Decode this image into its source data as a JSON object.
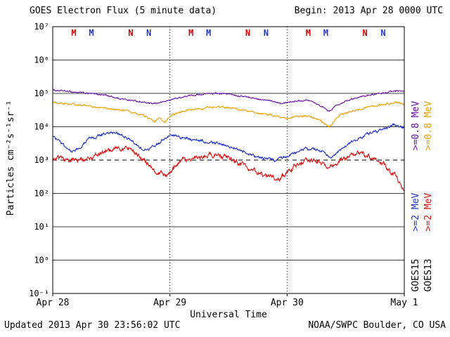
{
  "header": {
    "title": "GOES Electron Flux (5 minute data)",
    "begin": "Begin: 2013 Apr 28 0000 UTC"
  },
  "footer": {
    "updated": "Updated 2013 Apr 30 23:56:02 UTC",
    "source": "NOAA/SWPC Boulder, CO USA"
  },
  "axes": {
    "ylabel": "Particles cm⁻²s⁻¹sr⁻¹",
    "xlabel": "Universal Time",
    "y_tick_labels": [
      "10⁷",
      "10⁶",
      "10⁵",
      "10⁴",
      "10³",
      "10²",
      "10¹",
      "10⁰",
      "10⁻¹"
    ],
    "y_exponents": [
      7,
      6,
      5,
      4,
      3,
      2,
      1,
      0,
      -1
    ],
    "x_tick_labels": [
      "Apr 28",
      "Apr 29",
      "Apr 30",
      "May 1"
    ],
    "threshold_exponent": 3
  },
  "legend": {
    "satellites": [
      {
        "name": "GOES15",
        "name_color": "#000000",
        "labels": [
          {
            "text": ">=0.8 MeV",
            "color": "#6a0dad"
          },
          {
            "text": ">=2 MeV",
            "color": "#2233cc"
          }
        ]
      },
      {
        "name": "GOES13",
        "name_color": "#000000",
        "labels": [
          {
            "text": ">=0.8 MeV",
            "color": "#ee9f00"
          },
          {
            "text": ">=2 MeV",
            "color": "#dd1111"
          }
        ]
      }
    ]
  },
  "markers": [
    {
      "label": "M",
      "color": "#cc0000",
      "day": 0.18
    },
    {
      "label": "M",
      "color": "#2233cc",
      "day": 0.33
    },
    {
      "label": "N",
      "color": "#cc0000",
      "day": 0.665
    },
    {
      "label": "N",
      "color": "#2233cc",
      "day": 0.82
    },
    {
      "label": "M",
      "color": "#cc0000",
      "day": 1.18
    },
    {
      "label": "M",
      "color": "#2233cc",
      "day": 1.33
    },
    {
      "label": "N",
      "color": "#cc0000",
      "day": 1.665
    },
    {
      "label": "N",
      "color": "#2233cc",
      "day": 1.82
    },
    {
      "label": "M",
      "color": "#cc0000",
      "day": 2.18
    },
    {
      "label": "M",
      "color": "#2233cc",
      "day": 2.33
    },
    {
      "label": "N",
      "color": "#cc0000",
      "day": 2.665
    },
    {
      "label": "N",
      "color": "#2233cc",
      "day": 2.82
    }
  ],
  "chart_data": {
    "type": "line",
    "title": "GOES Electron Flux (5 minute data)",
    "xlabel": "Universal Time",
    "ylabel": "Particles cm-2 s-1 sr-1",
    "x_unit": "days since 2013 Apr 28 0000 UTC",
    "x_range_days": [
      0,
      3
    ],
    "x_tick_labels": [
      "Apr 28",
      "Apr 29",
      "Apr 30",
      "May 1"
    ],
    "y_scale": "log10",
    "ylim_log10": [
      -1,
      7
    ],
    "grid": "solid horizontal line each decade; dashed alert threshold at 1e3; dotted vertical lines at day boundaries",
    "threshold_log10": 3,
    "series": [
      {
        "name": "GOES15 >=0.8 MeV",
        "color": "#6a0dad",
        "noise_log10": 0.015,
        "points_log10": [
          [
            0,
            5.1
          ],
          [
            0.15,
            5.05
          ],
          [
            0.3,
            5.0
          ],
          [
            0.45,
            4.95
          ],
          [
            0.55,
            4.86
          ],
          [
            0.65,
            4.8
          ],
          [
            0.75,
            4.75
          ],
          [
            0.85,
            4.68
          ],
          [
            0.95,
            4.75
          ],
          [
            1.05,
            4.85
          ],
          [
            1.2,
            4.95
          ],
          [
            1.35,
            5.0
          ],
          [
            1.5,
            4.98
          ],
          [
            1.65,
            4.9
          ],
          [
            1.8,
            4.8
          ],
          [
            1.95,
            4.72
          ],
          [
            2.1,
            4.78
          ],
          [
            2.2,
            4.8
          ],
          [
            2.3,
            4.6
          ],
          [
            2.36,
            4.45
          ],
          [
            2.42,
            4.65
          ],
          [
            2.5,
            4.78
          ],
          [
            2.6,
            4.88
          ],
          [
            2.7,
            4.95
          ],
          [
            2.8,
            5.0
          ],
          [
            2.9,
            5.05
          ],
          [
            3.0,
            5.08
          ]
        ]
      },
      {
        "name": "GOES13 >=0.8 MeV",
        "color": "#ee9f00",
        "noise_log10": 0.02,
        "points_log10": [
          [
            0,
            4.72
          ],
          [
            0.15,
            4.68
          ],
          [
            0.3,
            4.62
          ],
          [
            0.45,
            4.55
          ],
          [
            0.6,
            4.5
          ],
          [
            0.7,
            4.42
          ],
          [
            0.8,
            4.3
          ],
          [
            0.87,
            4.15
          ],
          [
            0.91,
            4.28
          ],
          [
            0.95,
            4.1
          ],
          [
            1.0,
            4.3
          ],
          [
            1.1,
            4.45
          ],
          [
            1.25,
            4.55
          ],
          [
            1.4,
            4.6
          ],
          [
            1.55,
            4.55
          ],
          [
            1.7,
            4.45
          ],
          [
            1.85,
            4.35
          ],
          [
            2.0,
            4.25
          ],
          [
            2.1,
            4.32
          ],
          [
            2.2,
            4.3
          ],
          [
            2.3,
            4.15
          ],
          [
            2.36,
            4.0
          ],
          [
            2.45,
            4.35
          ],
          [
            2.6,
            4.5
          ],
          [
            2.75,
            4.62
          ],
          [
            2.85,
            4.7
          ],
          [
            2.95,
            4.72
          ],
          [
            3.0,
            4.65
          ]
        ]
      },
      {
        "name": "GOES15 >=2 MeV",
        "color": "#2233cc",
        "noise_log10": 0.03,
        "points_log10": [
          [
            0,
            3.7
          ],
          [
            0.06,
            3.55
          ],
          [
            0.12,
            3.35
          ],
          [
            0.17,
            3.27
          ],
          [
            0.22,
            3.35
          ],
          [
            0.3,
            3.6
          ],
          [
            0.4,
            3.75
          ],
          [
            0.5,
            3.82
          ],
          [
            0.57,
            3.78
          ],
          [
            0.62,
            3.7
          ],
          [
            0.7,
            3.5
          ],
          [
            0.78,
            3.28
          ],
          [
            0.84,
            3.35
          ],
          [
            0.9,
            3.5
          ],
          [
            0.96,
            3.65
          ],
          [
            1.0,
            3.76
          ],
          [
            1.08,
            3.7
          ],
          [
            1.2,
            3.62
          ],
          [
            1.3,
            3.56
          ],
          [
            1.4,
            3.5
          ],
          [
            1.5,
            3.42
          ],
          [
            1.6,
            3.3
          ],
          [
            1.7,
            3.15
          ],
          [
            1.8,
            3.05
          ],
          [
            1.9,
            3.0
          ],
          [
            1.96,
            3.06
          ],
          [
            2.05,
            3.2
          ],
          [
            2.15,
            3.32
          ],
          [
            2.22,
            3.36
          ],
          [
            2.3,
            3.25
          ],
          [
            2.37,
            3.06
          ],
          [
            2.45,
            3.3
          ],
          [
            2.55,
            3.55
          ],
          [
            2.65,
            3.72
          ],
          [
            2.75,
            3.85
          ],
          [
            2.85,
            3.98
          ],
          [
            2.92,
            4.05
          ],
          [
            3.0,
            3.97
          ]
        ]
      },
      {
        "name": "GOES13 >=2 MeV",
        "color": "#dd1111",
        "noise_log10": 0.05,
        "points_log10": [
          [
            0,
            3.1
          ],
          [
            0.1,
            3.0
          ],
          [
            0.2,
            3.0
          ],
          [
            0.3,
            3.05
          ],
          [
            0.4,
            3.18
          ],
          [
            0.5,
            3.32
          ],
          [
            0.55,
            3.4
          ],
          [
            0.6,
            3.3
          ],
          [
            0.65,
            3.35
          ],
          [
            0.72,
            3.18
          ],
          [
            0.8,
            2.95
          ],
          [
            0.86,
            2.7
          ],
          [
            0.9,
            2.55
          ],
          [
            0.93,
            2.7
          ],
          [
            0.96,
            2.5
          ],
          [
            1.0,
            2.65
          ],
          [
            1.06,
            2.9
          ],
          [
            1.12,
            3.0
          ],
          [
            1.2,
            3.05
          ],
          [
            1.3,
            3.12
          ],
          [
            1.4,
            3.18
          ],
          [
            1.46,
            3.1
          ],
          [
            1.56,
            2.95
          ],
          [
            1.66,
            2.8
          ],
          [
            1.76,
            2.62
          ],
          [
            1.86,
            2.48
          ],
          [
            1.92,
            2.4
          ],
          [
            1.97,
            2.55
          ],
          [
            2.03,
            2.72
          ],
          [
            2.1,
            2.9
          ],
          [
            2.2,
            3.0
          ],
          [
            2.3,
            2.9
          ],
          [
            2.38,
            2.8
          ],
          [
            2.46,
            3.0
          ],
          [
            2.56,
            3.15
          ],
          [
            2.62,
            3.2
          ],
          [
            2.7,
            3.1
          ],
          [
            2.8,
            2.95
          ],
          [
            2.88,
            2.7
          ],
          [
            2.93,
            2.5
          ],
          [
            2.97,
            2.25
          ],
          [
            3.0,
            2.1
          ]
        ]
      }
    ]
  }
}
